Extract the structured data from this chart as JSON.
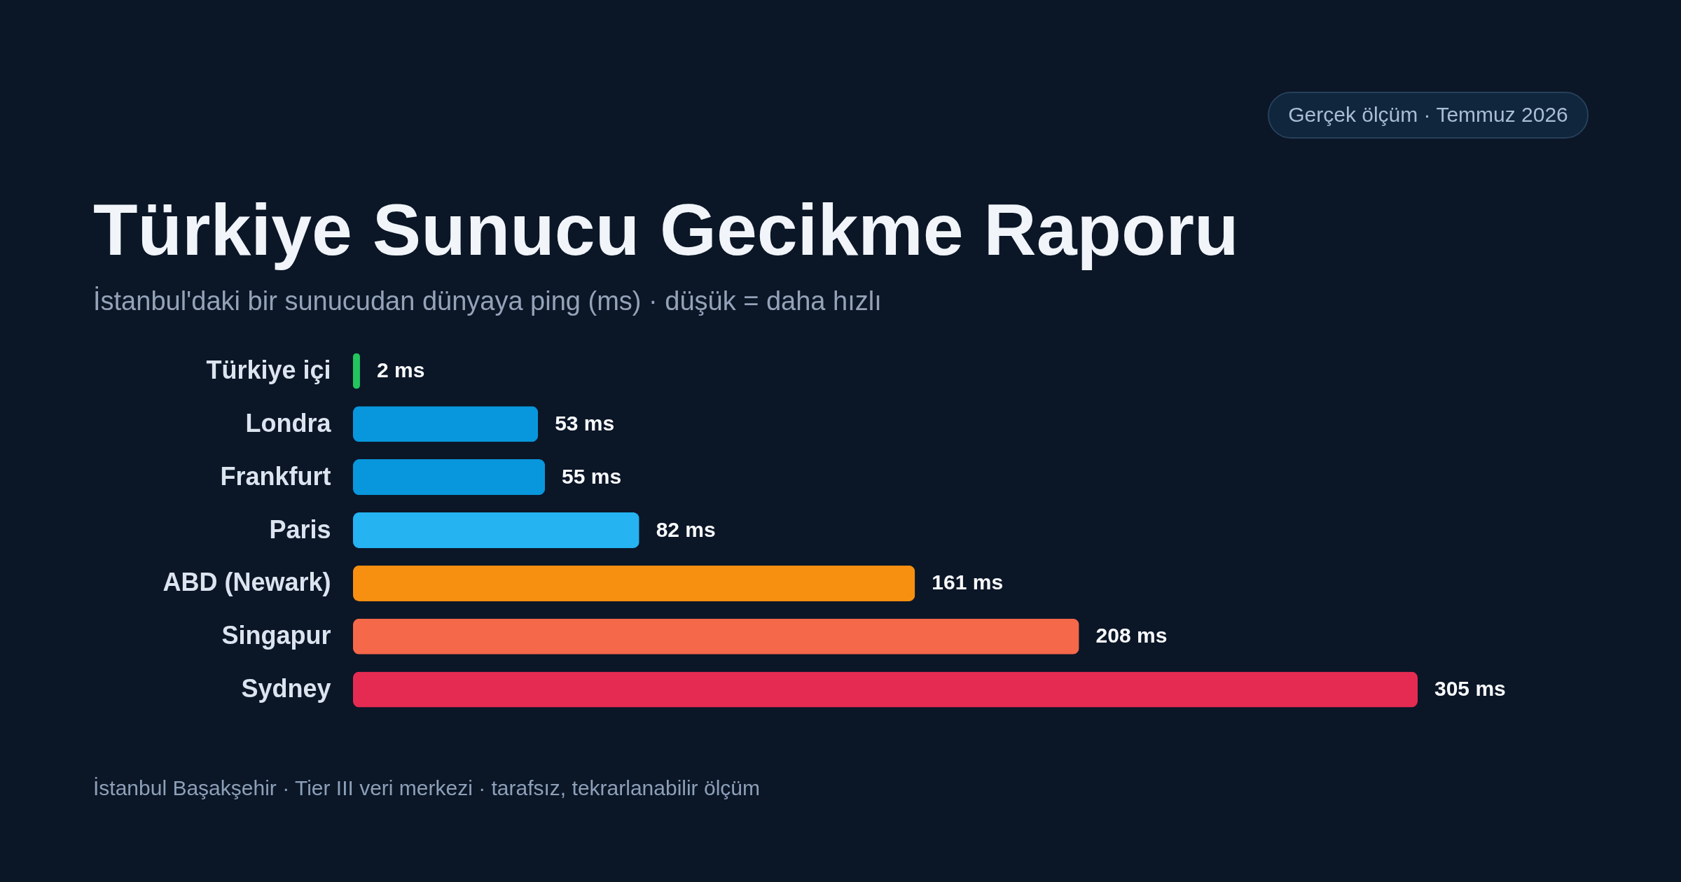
{
  "chart_data": {
    "type": "bar",
    "orientation": "horizontal",
    "title": "Türkiye Sunucu Gecikme Raporu",
    "subtitle": "İstanbul'daki bir sunucudan dünyaya ping (ms) · düşük = daha hızlı",
    "categories": [
      "Türkiye içi",
      "Londra",
      "Frankfurt",
      "Paris",
      "ABD (Newark)",
      "Singapur",
      "Sydney"
    ],
    "values": [
      2,
      53,
      55,
      82,
      161,
      208,
      305
    ],
    "colors": [
      "#22c55e",
      "#0897dc",
      "#0897dc",
      "#25b3f2",
      "#f78f10",
      "#f5684a",
      "#e62b52"
    ],
    "value_labels": [
      "2 ms",
      "53 ms",
      "55 ms",
      "82 ms",
      "161 ms",
      "208 ms",
      "305 ms"
    ],
    "annotations": [
      "Gerçek ölçüm · Temmuz 2026",
      "İstanbul Başakşehir · Tier III veri merkezi · tarafsız, tekrarlanabilir ölçüm"
    ]
  }
}
